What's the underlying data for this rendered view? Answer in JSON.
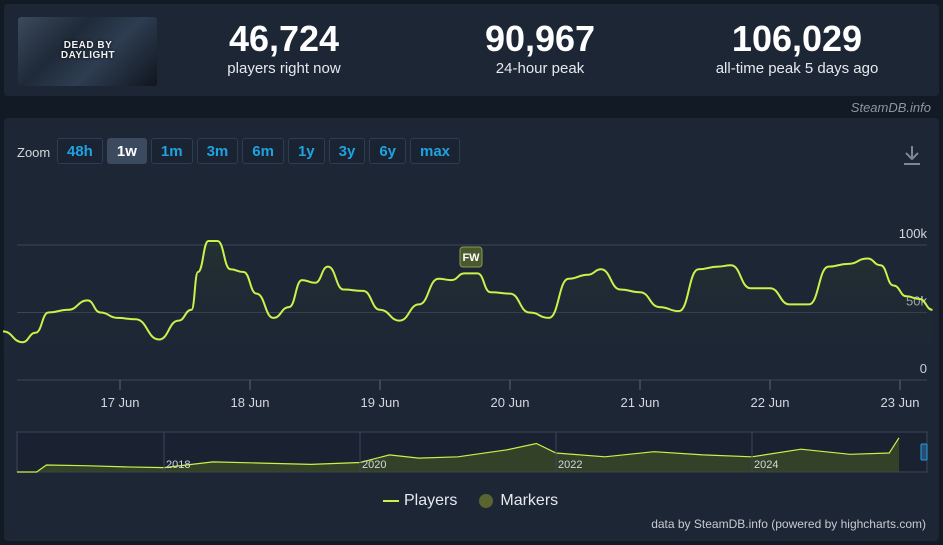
{
  "header": {
    "game_logo_text": "DEAD BY DAYLIGHT",
    "stats": [
      {
        "value": "46,724",
        "label": "players right now"
      },
      {
        "value": "90,967",
        "label": "24-hour peak"
      },
      {
        "value": "106,029",
        "label": "all-time peak 5 days ago"
      }
    ],
    "source": "SteamDB.info"
  },
  "zoom": {
    "label": "Zoom",
    "options": [
      "48h",
      "1w",
      "1m",
      "3m",
      "6m",
      "1y",
      "3y",
      "6y",
      "max"
    ],
    "active": "1w"
  },
  "legend": {
    "players": "Players",
    "markers": "Markers"
  },
  "credits": "data by SteamDB.info (powered by highcharts.com)",
  "colors": {
    "series": "#c9f24a",
    "marker": "#5a6430",
    "accent": "#1fa3e0"
  },
  "chart_data": [
    {
      "type": "area",
      "title": "",
      "x_tick_labels": [
        "17 Jun",
        "18 Jun",
        "19 Jun",
        "20 Jun",
        "21 Jun",
        "22 Jun",
        "23 Jun"
      ],
      "y_tick_labels": [
        "0",
        "50k",
        "100k"
      ],
      "ylim": [
        0,
        100000
      ],
      "grid": true,
      "series": [
        {
          "name": "Players",
          "x_days": [
            16.1,
            16.25,
            16.35,
            16.45,
            16.6,
            16.75,
            16.85,
            16.98,
            17.12,
            17.3,
            17.45,
            17.55,
            17.6,
            17.68,
            17.75,
            17.85,
            17.95,
            18.05,
            18.18,
            18.3,
            18.4,
            18.5,
            18.6,
            18.72,
            18.87,
            19.0,
            19.15,
            19.3,
            19.45,
            19.55,
            19.65,
            19.75,
            19.85,
            20.0,
            20.15,
            20.3,
            20.45,
            20.6,
            20.7,
            20.85,
            21.0,
            21.15,
            21.3,
            21.45,
            21.6,
            21.7,
            21.85,
            22.0,
            22.15,
            22.3,
            22.45,
            22.6,
            22.75,
            22.85,
            22.95,
            23.05,
            23.15,
            23.25
          ],
          "values": [
            36000,
            28000,
            35000,
            50000,
            52000,
            59000,
            50000,
            46000,
            45000,
            30000,
            44000,
            52000,
            80000,
            103000,
            103000,
            82000,
            80000,
            64000,
            46000,
            54000,
            74000,
            72000,
            84000,
            67000,
            66000,
            52000,
            44000,
            56000,
            75000,
            74000,
            79000,
            79000,
            65000,
            64000,
            50000,
            46000,
            75000,
            78000,
            82000,
            67000,
            65000,
            54000,
            51000,
            82000,
            84000,
            85000,
            68000,
            68000,
            56000,
            56000,
            84000,
            86000,
            90000,
            85000,
            70000,
            62000,
            60000,
            52000
          ]
        },
        {
          "name": "Markers",
          "events": [
            {
              "x_day": 19.7,
              "label": "FW"
            }
          ]
        }
      ]
    },
    {
      "type": "area",
      "title": "",
      "x_tick_labels": [
        "2018",
        "2020",
        "2022",
        "2024"
      ],
      "series": [
        {
          "name": "Players",
          "x_years": [
            2016.5,
            2016.7,
            2016.8,
            2017.2,
            2017.6,
            2018.0,
            2018.5,
            2019.0,
            2019.5,
            2020.0,
            2020.3,
            2020.6,
            2021.0,
            2021.5,
            2021.8,
            2022.0,
            2022.5,
            2023.0,
            2023.5,
            2024.0,
            2024.5,
            2025.0,
            2025.4,
            2025.5
          ],
          "values": [
            0,
            0,
            11000,
            10000,
            8000,
            7000,
            16000,
            14000,
            12000,
            15000,
            27000,
            22000,
            24000,
            35000,
            45000,
            30000,
            24000,
            32000,
            27000,
            24000,
            36000,
            28000,
            30000,
            54000
          ]
        }
      ]
    }
  ]
}
